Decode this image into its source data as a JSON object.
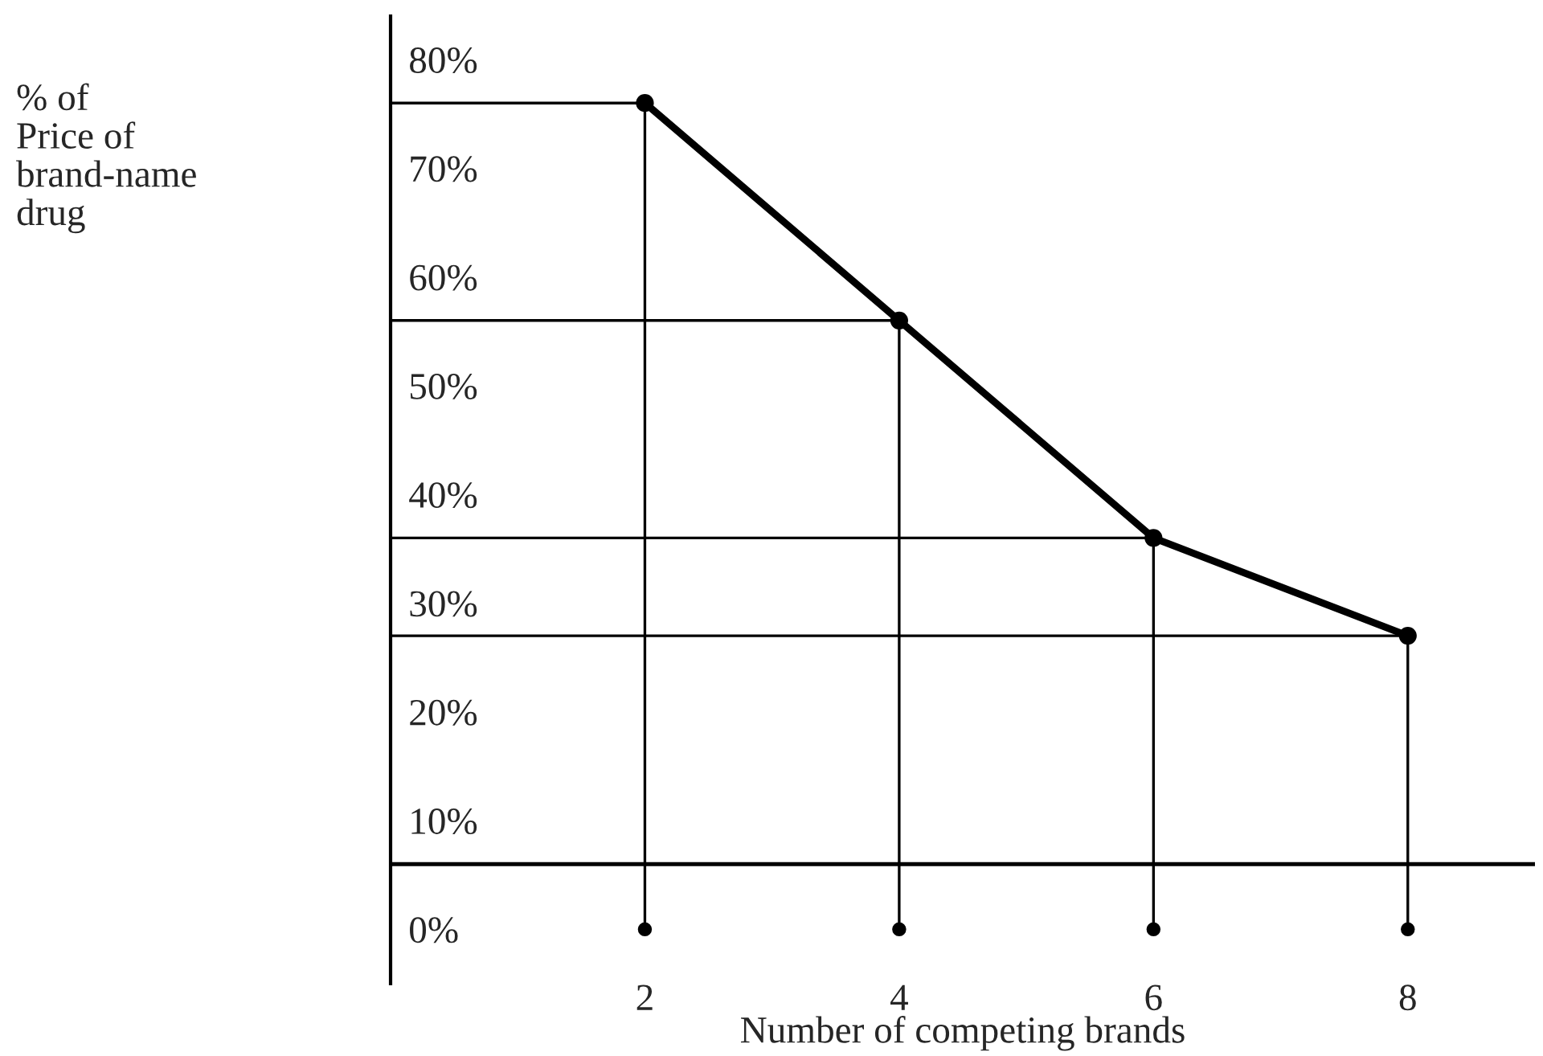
{
  "chart_data": {
    "type": "line",
    "xlabel": "Number of competing brands",
    "annotations": [
      "% of\nPrice of\nbrand-name\ndrug"
    ],
    "x": [
      2,
      4,
      6,
      8
    ],
    "series": [
      {
        "color": "#000000",
        "values": [
          76,
          56,
          36,
          27
        ]
      },
      {
        "type": "line",
        "marker": "none",
        "color": "#000000",
        "x": [
          2,
          2
        ],
        "values": [
          0,
          76
        ]
      },
      {
        "type": "line",
        "marker": "none",
        "color": "#000000",
        "x": [
          4,
          4
        ],
        "values": [
          0,
          56
        ]
      },
      {
        "type": "line",
        "marker": "none",
        "color": "#000000",
        "x": [
          6,
          6
        ],
        "values": [
          0,
          36
        ]
      },
      {
        "type": "line",
        "marker": "none",
        "color": "#000000",
        "x": [
          8,
          8
        ],
        "values": [
          0,
          27
        ]
      },
      {
        "type": "line",
        "marker": "none",
        "color": "#000000",
        "x": [
          0,
          2
        ],
        "values": [
          76,
          76
        ]
      },
      {
        "type": "line",
        "marker": "none",
        "color": "#000000",
        "x": [
          0,
          4
        ],
        "values": [
          56,
          56
        ]
      },
      {
        "type": "line",
        "marker": "none",
        "color": "#000000",
        "x": [
          0,
          6
        ],
        "values": [
          36,
          36
        ]
      },
      {
        "type": "line",
        "marker": "none",
        "color": "#000000",
        "x": [
          0,
          8
        ],
        "values": [
          27,
          27
        ]
      },
      {
        "type": "scatter",
        "color": "#000000",
        "values": [
          0,
          0,
          0,
          0
        ]
      }
    ],
    "xlim": [
      0,
      9
    ],
    "xticks": [
      2,
      4,
      6,
      8
    ],
    "ylim": [
      -5,
      84
    ],
    "yticks": [
      {
        "value": 0,
        "label": "0%"
      },
      {
        "value": 10,
        "label": "10%"
      },
      {
        "value": 20,
        "label": "20%"
      },
      {
        "value": 30,
        "label": "30%"
      },
      {
        "value": 40,
        "label": "40%"
      },
      {
        "value": 50,
        "label": "50%"
      },
      {
        "value": 60,
        "label": "60%"
      },
      {
        "value": 70,
        "label": "70%"
      },
      {
        "value": 80,
        "label": "80%"
      }
    ],
    "ref_lines": [
      {
        "axis": "y",
        "value": 6,
        "color": "#000000"
      }
    ],
    "marker": "circle",
    "line_style": "solid",
    "grid": false,
    "legend": false
  }
}
